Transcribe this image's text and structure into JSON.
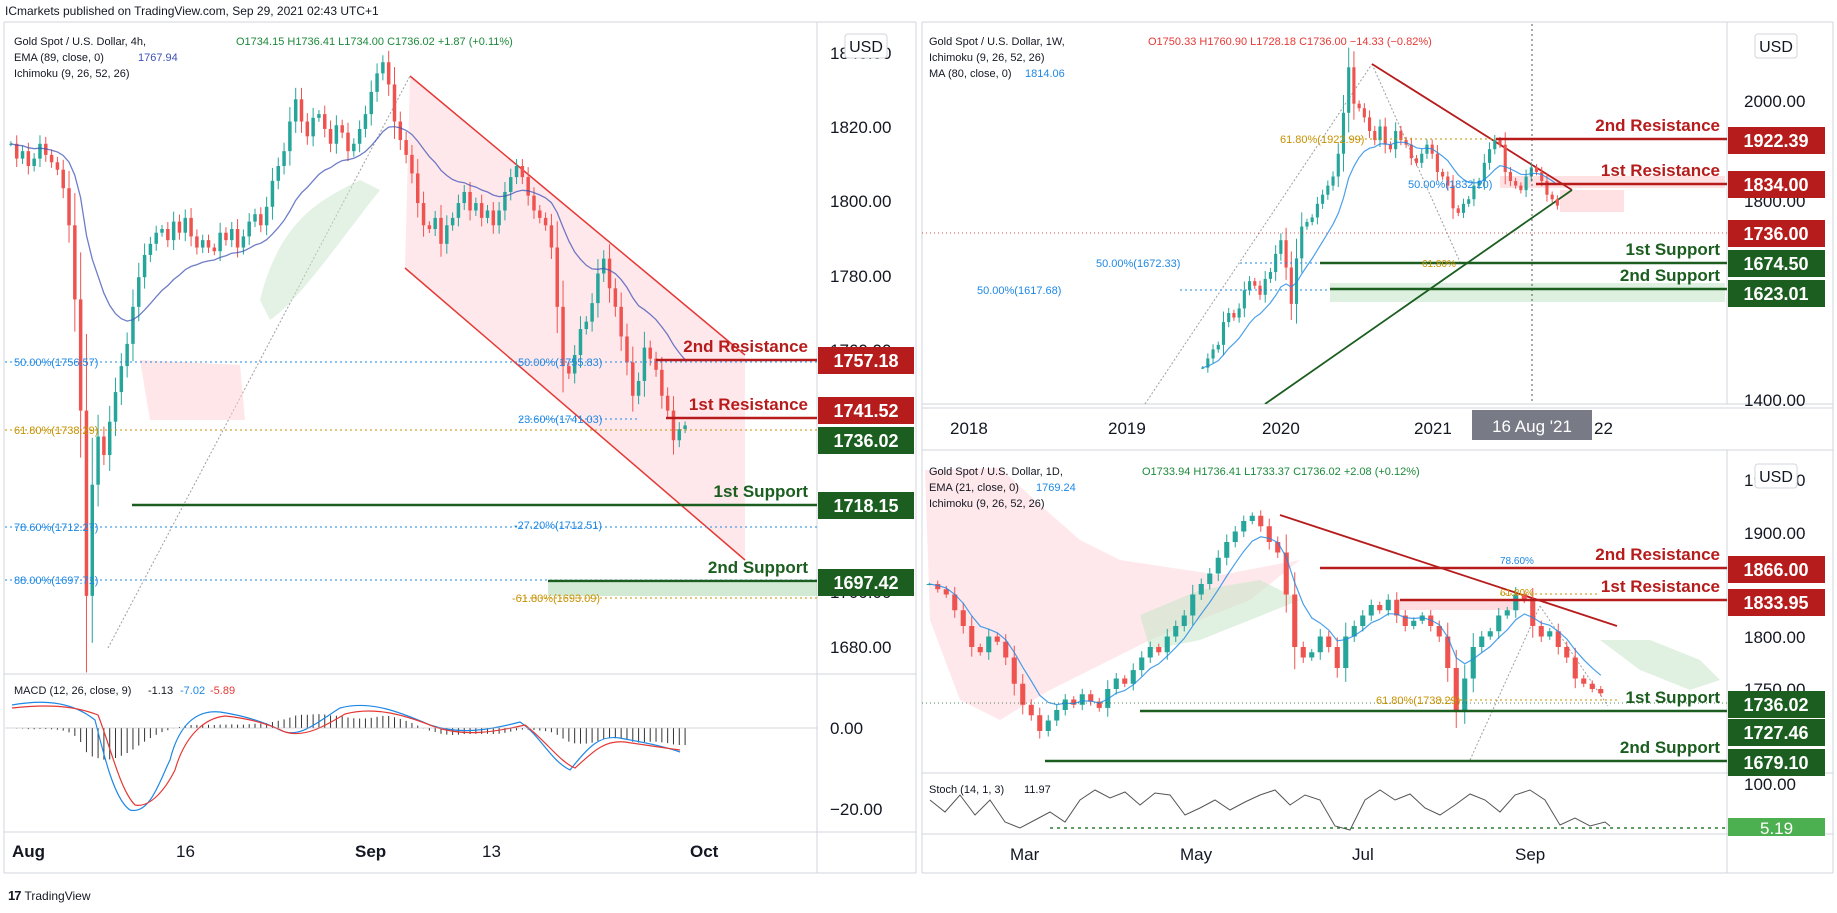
{
  "header": {
    "publisher": "ICmarkets published on TradingView.com, Sep 29, 2021 02:43 UTC+1"
  },
  "footer": {
    "brand": "TradingView",
    "logo": "17"
  },
  "colors": {
    "resistance": "#b71c1c",
    "support": "#1b5e20",
    "up": "#26a69a",
    "down": "#ef5350",
    "fib": "#1e88e5",
    "fib_gold": "#c79100",
    "grey_tag": "#787b86"
  },
  "panels": [
    {
      "id": "4h",
      "symbol": "Gold Spot / U.S. Dollar, 4h,",
      "ohlc": "O1734.15 H1736.41 L1734.00 C1736.02 +1.87 (+0.11%)",
      "ind1_label": "EMA (89, close, 0)",
      "ind1_value": "1767.94",
      "ind2_label": "Ichimoku (9, 26, 52, 26)",
      "currency": "USD",
      "axis_labels": [
        "1840.00",
        "1820.00",
        "1800.00",
        "1780.00",
        "1760.00",
        "1700.00",
        "1680.00"
      ],
      "levels": [
        {
          "name": "2nd Resistance",
          "value": "1757.18",
          "type": "resistance"
        },
        {
          "name": "1st Resistance",
          "value": "1741.52",
          "type": "resistance"
        },
        {
          "name": "",
          "value": "1736.02",
          "type": "price"
        },
        {
          "name": "1st Support",
          "value": "1718.15",
          "type": "support"
        },
        {
          "name": "2nd Support",
          "value": "1697.42",
          "type": "support"
        }
      ],
      "fibs": [
        "50.00%(1756.57)",
        "61.80%(1738.29)",
        "78.60%(1712.27)",
        "88.00%(1697.71)",
        "50.00%(1755.83)",
        "23.60%(1741.03)",
        "-27.20%(1712.51)",
        "-61.80%(1693.09)"
      ],
      "x_labels": [
        "Aug",
        "16",
        "Sep",
        "13",
        "Oct"
      ],
      "macd_label": "MACD (12, 26, close, 9)",
      "macd_v1": "-1.13",
      "macd_v2": "-7.02",
      "macd_v3": "-5.89",
      "macd_axis": [
        "0.00",
        "−20.00"
      ]
    },
    {
      "id": "1w",
      "symbol": "Gold Spot / U.S. Dollar, 1W,",
      "ohlc": "O1750.33 H1760.90 L1728.18 C1736.00 −14.33 (−0.82%)",
      "ind1_label": "Ichimoku (9, 26, 52, 26)",
      "ind2_label": "MA (80, close, 0)",
      "ind2_value": "1814.06",
      "currency": "USD",
      "axis_labels": [
        "2000.00",
        "1800.00",
        "1400.00"
      ],
      "levels": [
        {
          "name": "2nd Resistance",
          "value": "1922.39",
          "type": "resistance"
        },
        {
          "name": "1st Resistance",
          "value": "1834.00",
          "type": "resistance"
        },
        {
          "name": "",
          "value": "1736.00",
          "type": "price"
        },
        {
          "name": "1st Support",
          "value": "1674.50",
          "type": "support"
        },
        {
          "name": "2nd Support",
          "value": "1623.01",
          "type": "support"
        }
      ],
      "fibs": [
        "61.80%(1922.99)",
        "50.00%(1832.20)",
        "50.00%(1672.33)",
        "50.00%(1617.68)",
        "61.80%"
      ],
      "x_labels": [
        "2018",
        "2019",
        "2020",
        "2021",
        "22"
      ],
      "cursor_label": "16 Aug '21"
    },
    {
      "id": "1d",
      "symbol": "Gold Spot / U.S. Dollar, 1D,",
      "ohlc": "O1733.94 H1736.41 L1733.37 C1736.02 +2.08 (+0.12%)",
      "ind1_label": "EMA (21, close, 0)",
      "ind1_value": "1769.24",
      "ind2_label": "Ichimoku (9, 26, 52, 26)",
      "currency": "USD",
      "axis_labels": [
        "1950.00",
        "1900.00",
        "1800.00",
        "1750.00"
      ],
      "levels": [
        {
          "name": "2nd Resistance",
          "value": "1866.00",
          "type": "resistance"
        },
        {
          "name": "1st Resistance",
          "value": "1833.95",
          "type": "resistance"
        },
        {
          "name": "1st Support",
          "value": "1736.02",
          "type": "support"
        },
        {
          "name": "",
          "value": "1727.46",
          "type": "support"
        },
        {
          "name": "2nd Support",
          "value": "1679.10",
          "type": "support"
        }
      ],
      "fibs": [
        "78.60%",
        "61.80%",
        "61.80%(1738.29)"
      ],
      "x_labels": [
        "Mar",
        "May",
        "Jul",
        "Sep"
      ],
      "stoch_label": "Stoch (14, 1, 3)",
      "stoch_value": "11.97",
      "stoch_axis": [
        "100.00",
        "5.19"
      ]
    }
  ],
  "chart_data": [
    {
      "type": "candlestick",
      "title": "Gold Spot / U.S. Dollar, 4h",
      "x_ticks": [
        "Aug",
        "16",
        "Sep",
        "13",
        "Oct"
      ],
      "ylim": [
        1670,
        1840
      ],
      "close": [
        1812,
        1808,
        1810,
        1806,
        1808,
        1812,
        1809,
        1807,
        1805,
        1800,
        1790,
        1770,
        1740,
        1690,
        1720,
        1733,
        1728,
        1737,
        1745,
        1752,
        1758,
        1768,
        1776,
        1782,
        1785,
        1788,
        1789,
        1786,
        1791,
        1788,
        1792,
        1787,
        1784,
        1786,
        1784,
        1783,
        1788,
        1786,
        1789,
        1784,
        1787,
        1791,
        1793,
        1790,
        1795,
        1802,
        1806,
        1810,
        1818,
        1824,
        1818,
        1814,
        1819,
        1820,
        1816,
        1812,
        1817,
        1815,
        1810,
        1812,
        1816,
        1820,
        1826,
        1831,
        1834,
        1828,
        1818,
        1813,
        1809,
        1804,
        1796,
        1790,
        1789,
        1792,
        1785,
        1790,
        1792,
        1796,
        1799,
        1794,
        1796,
        1792,
        1794,
        1790,
        1794,
        1799,
        1803,
        1806,
        1803,
        1798,
        1794,
        1792,
        1790,
        1784,
        1768,
        1752,
        1750,
        1755,
        1762,
        1764,
        1769,
        1777,
        1781,
        1773,
        1768,
        1760,
        1753,
        1744,
        1748,
        1757,
        1754,
        1751,
        1744,
        1740,
        1732,
        1735,
        1736
      ],
      "ema": {
        "name": "EMA (89, close, 0)",
        "last": 1767.94
      },
      "macd": {
        "name": "MACD (12, 26, close, 9)",
        "values": [
          -1.13,
          -7.02,
          -5.89
        ]
      },
      "levels": [
        1757.18,
        1741.52,
        1736.02,
        1718.15,
        1697.42
      ]
    },
    {
      "type": "candlestick",
      "title": "Gold Spot / U.S. Dollar, 1W",
      "x_ticks": [
        "2018",
        "2019",
        "2020",
        "2021",
        "22"
      ],
      "ylim": [
        1300,
        2100
      ],
      "close": [
        1380,
        1400,
        1420,
        1430,
        1480,
        1500,
        1490,
        1510,
        1550,
        1570,
        1560,
        1540,
        1575,
        1590,
        1630,
        1660,
        1600,
        1520,
        1620,
        1690,
        1700,
        1710,
        1740,
        1760,
        1780,
        1800,
        1850,
        1940,
        2040,
        1960,
        1950,
        1930,
        1900,
        1880,
        1910,
        1870,
        1860,
        1900,
        1880,
        1870,
        1840,
        1830,
        1850,
        1870,
        1850,
        1810,
        1800,
        1780,
        1730,
        1720,
        1740,
        1750,
        1780,
        1790,
        1830,
        1860,
        1880,
        1870,
        1810,
        1790,
        1780,
        1770,
        1800,
        1820,
        1810,
        1790,
        1760,
        1750,
        1736
      ],
      "ma": {
        "name": "MA (80, close, 0)",
        "last": 1814.06
      },
      "levels": [
        1922.39,
        1834.0,
        1736.0,
        1674.5,
        1623.01
      ]
    },
    {
      "type": "candlestick",
      "title": "Gold Spot / U.S. Dollar, 1D",
      "x_ticks": [
        "Mar",
        "May",
        "Jul",
        "Sep"
      ],
      "ylim": [
        1660,
        1960
      ],
      "close": [
        1840,
        1835,
        1830,
        1815,
        1800,
        1780,
        1775,
        1790,
        1785,
        1770,
        1745,
        1725,
        1715,
        1700,
        1710,
        1720,
        1730,
        1725,
        1735,
        1728,
        1722,
        1740,
        1750,
        1745,
        1758,
        1770,
        1780,
        1775,
        1790,
        1800,
        1810,
        1830,
        1840,
        1850,
        1865,
        1880,
        1890,
        1900,
        1905,
        1895,
        1880,
        1870,
        1830,
        1780,
        1770,
        1775,
        1790,
        1780,
        1760,
        1790,
        1800,
        1810,
        1820,
        1815,
        1825,
        1810,
        1800,
        1805,
        1810,
        1800,
        1790,
        1760,
        1720,
        1750,
        1780,
        1790,
        1795,
        1810,
        1815,
        1830,
        1825,
        1800,
        1790,
        1795,
        1780,
        1770,
        1750,
        1745,
        1740,
        1736
      ],
      "ema": {
        "name": "EMA (21, close, 0)",
        "last": 1769.24
      },
      "stoch": {
        "name": "Stoch (14, 1, 3)",
        "value": 11.97
      },
      "levels": [
        1866.0,
        1833.95,
        1736.02,
        1727.46,
        1679.1
      ]
    }
  ]
}
